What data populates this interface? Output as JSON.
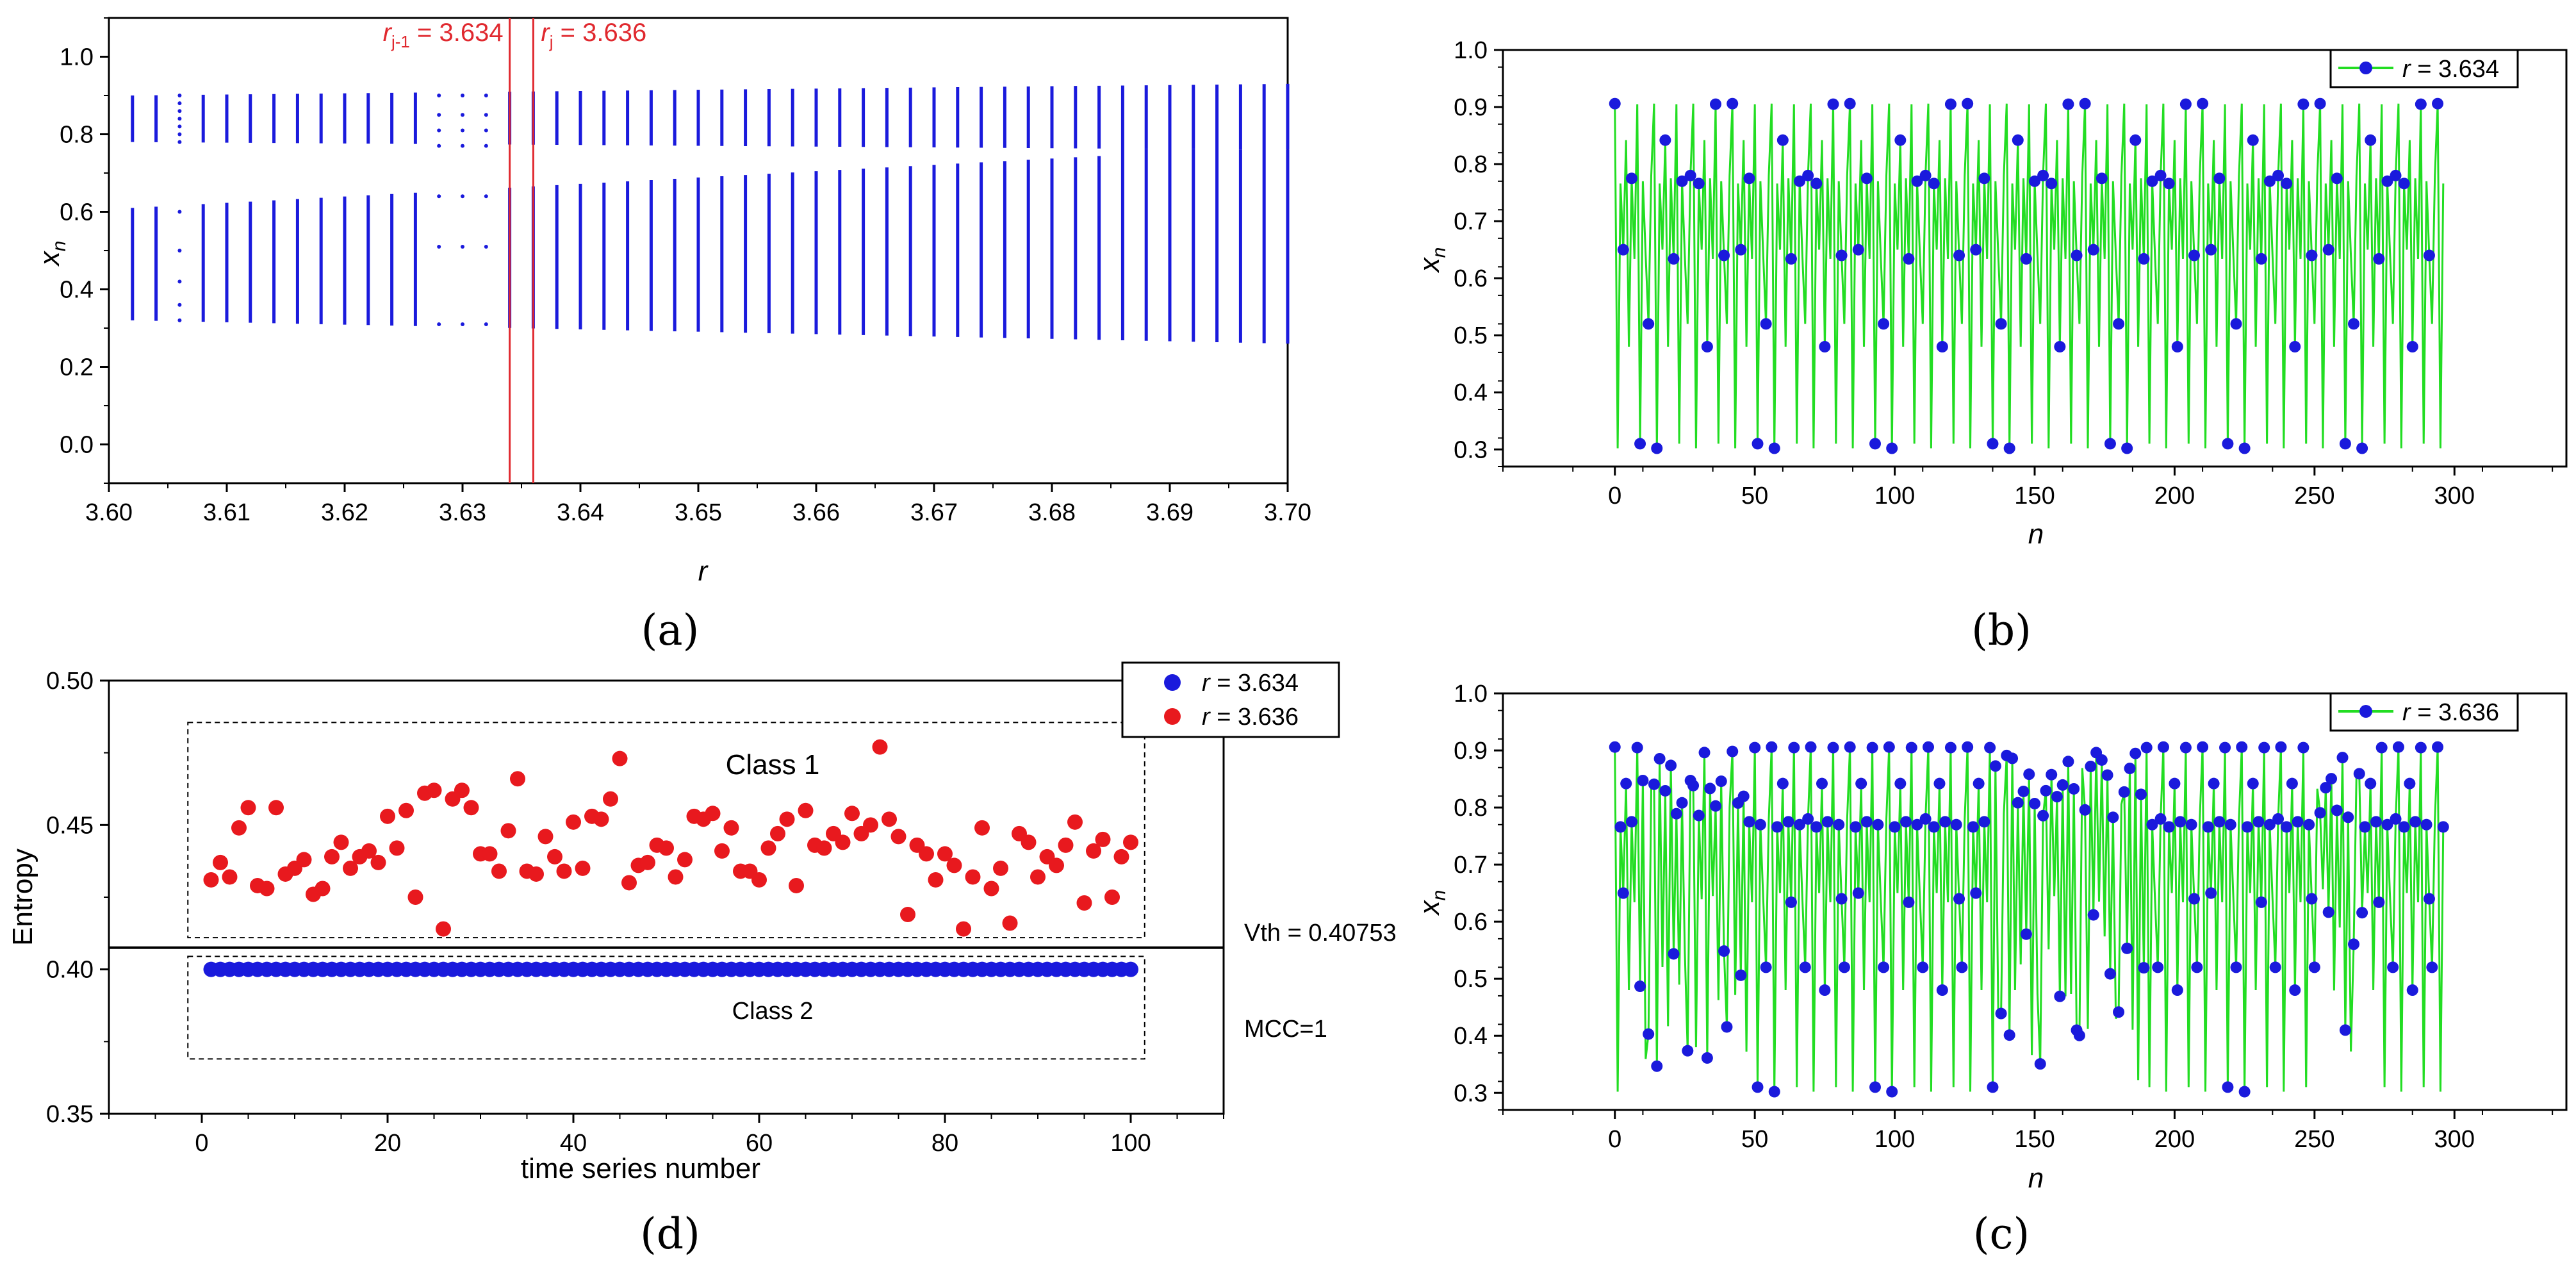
{
  "chart_data": [
    {
      "panel": "a",
      "type": "scatter",
      "panel_label": "(a)",
      "xlabel": "r",
      "ylabel": "x",
      "ylabel_sub": "n",
      "xlim": [
        3.6,
        3.7
      ],
      "ylim": [
        -0.1,
        1.1
      ],
      "xticks": [
        "3.60",
        "3.61",
        "3.62",
        "3.63",
        "3.64",
        "3.65",
        "3.66",
        "3.67",
        "3.68",
        "3.69",
        "3.70"
      ],
      "yticks": [
        "0.0",
        "0.2",
        "0.4",
        "0.6",
        "0.8",
        "1.0"
      ],
      "threshold_lines": [
        {
          "x": 3.634,
          "label_r": "r",
          "label_sub": "j-1",
          "label_rest": " = 3.634"
        },
        {
          "x": 3.636,
          "label_r": "r",
          "label_sub": "j",
          "label_rest": " = 3.636"
        }
      ],
      "line_color": "#e0282e",
      "point_color": "#1a1adc",
      "note": "bifurcation diagram: vertical bands at r steps of 0.002",
      "bands_upper": [
        [
          0.78,
          0.9
        ]
      ],
      "bands_lower": [
        [
          0.32,
          0.61
        ]
      ]
    },
    {
      "panel": "b",
      "type": "line",
      "panel_label": "(b)",
      "xlabel": "n",
      "ylabel": "x",
      "ylabel_sub": "n",
      "xlim": [
        -40,
        340
      ],
      "ylim": [
        0.27,
        1.0
      ],
      "xticks": [
        "0",
        "50",
        "100",
        "150",
        "200",
        "250",
        "300"
      ],
      "yticks": [
        "0.3",
        "0.4",
        "0.5",
        "0.6",
        "0.7",
        "0.8",
        "0.9",
        "1.0"
      ],
      "legend_r": "r",
      "legend_value": " = 3.634",
      "series_color": "#22dd22",
      "marker_color": "#1a1adc",
      "period_levels": [
        0.906,
        0.302,
        0.766,
        0.65,
        0.842,
        0.48,
        0.77,
        0.634,
        0.522,
        0.78
      ]
    },
    {
      "panel": "c",
      "type": "line",
      "panel_label": "(c)",
      "xlabel": "n",
      "ylabel": "x",
      "ylabel_sub": "n",
      "xlim": [
        -40,
        340
      ],
      "ylim": [
        0.27,
        1.0
      ],
      "xticks": [
        "0",
        "50",
        "100",
        "150",
        "200",
        "250",
        "300"
      ],
      "yticks": [
        "0.3",
        "0.4",
        "0.5",
        "0.6",
        "0.7",
        "0.8",
        "0.9",
        "1.0"
      ],
      "legend_r": "r",
      "legend_value": " = 3.636",
      "series_color": "#22dd22",
      "marker_color": "#1a1adc"
    },
    {
      "panel": "d",
      "type": "scatter",
      "panel_label": "(d)",
      "xlabel": "time series number",
      "ylabel": "Entropy",
      "xlim": [
        -10,
        110
      ],
      "ylim": [
        0.35,
        0.5
      ],
      "xticks": [
        "0",
        "20",
        "40",
        "60",
        "80",
        "100"
      ],
      "yticks": [
        "0.35",
        "0.40",
        "0.45",
        "0.50"
      ],
      "threshold": 0.40753,
      "threshold_label": "Vth = 0.40753",
      "class1_label": "Class 1",
      "class2_label": "Class 2",
      "mcc_label": "MCC=1",
      "series": [
        {
          "name_r": "r",
          "name_value": " = 3.634",
          "color": "#1a1adc",
          "x": [
            1,
            2,
            3,
            4,
            5,
            6,
            7,
            8,
            9,
            10,
            11,
            12,
            13,
            14,
            15,
            16,
            17,
            18,
            19,
            20,
            21,
            22,
            23,
            24,
            25,
            26,
            27,
            28,
            29,
            30,
            31,
            32,
            33,
            34,
            35,
            36,
            37,
            38,
            39,
            40,
            41,
            42,
            43,
            44,
            45,
            46,
            47,
            48,
            49,
            50,
            51,
            52,
            53,
            54,
            55,
            56,
            57,
            58,
            59,
            60,
            61,
            62,
            63,
            64,
            65,
            66,
            67,
            68,
            69,
            70,
            71,
            72,
            73,
            74,
            75,
            76,
            77,
            78,
            79,
            80,
            81,
            82,
            83,
            84,
            85,
            86,
            87,
            88,
            89,
            90,
            91,
            92,
            93,
            94,
            95,
            96,
            97,
            98,
            99,
            100
          ],
          "y_const": 0.4
        },
        {
          "name_r": "r",
          "name_value": " = 3.636",
          "color": "#e8191e",
          "x": [
            1,
            2,
            3,
            4,
            5,
            6,
            7,
            8,
            9,
            10,
            11,
            12,
            13,
            14,
            15,
            16,
            17,
            18,
            19,
            20,
            21,
            22,
            23,
            24,
            25,
            26,
            27,
            28,
            29,
            30,
            31,
            32,
            33,
            34,
            35,
            36,
            37,
            38,
            39,
            40,
            41,
            42,
            43,
            44,
            45,
            46,
            47,
            48,
            49,
            50,
            51,
            52,
            53,
            54,
            55,
            56,
            57,
            58,
            59,
            60,
            61,
            62,
            63,
            64,
            65,
            66,
            67,
            68,
            69,
            70,
            71,
            72,
            73,
            74,
            75,
            76,
            77,
            78,
            79,
            80,
            81,
            82,
            83,
            84,
            85,
            86,
            87,
            88,
            89,
            90,
            91,
            92,
            93,
            94,
            95,
            96,
            97,
            98,
            99,
            100
          ],
          "y": [
            0.431,
            0.437,
            0.432,
            0.449,
            0.456,
            0.429,
            0.428,
            0.456,
            0.433,
            0.435,
            0.438,
            0.426,
            0.428,
            0.439,
            0.444,
            0.435,
            0.439,
            0.441,
            0.437,
            0.453,
            0.442,
            0.455,
            0.425,
            0.461,
            0.462,
            0.414,
            0.459,
            0.462,
            0.456,
            0.44,
            0.44,
            0.434,
            0.448,
            0.466,
            0.434,
            0.433,
            0.446,
            0.439,
            0.434,
            0.451,
            0.435,
            0.453,
            0.452,
            0.459,
            0.473,
            0.43,
            0.436,
            0.437,
            0.443,
            0.442,
            0.432,
            0.438,
            0.453,
            0.452,
            0.454,
            0.441,
            0.449,
            0.434,
            0.434,
            0.431,
            0.442,
            0.447,
            0.452,
            0.429,
            0.455,
            0.443,
            0.442,
            0.447,
            0.444,
            0.454,
            0.447,
            0.45,
            0.477,
            0.452,
            0.446,
            0.419,
            0.443,
            0.44,
            0.431,
            0.44,
            0.436,
            0.414,
            0.432,
            0.449,
            0.428,
            0.435,
            0.416,
            0.447,
            0.444,
            0.432,
            0.439,
            0.436,
            0.443,
            0.451,
            0.423,
            0.441,
            0.445,
            0.425,
            0.439,
            0.444
          ]
        }
      ]
    }
  ]
}
